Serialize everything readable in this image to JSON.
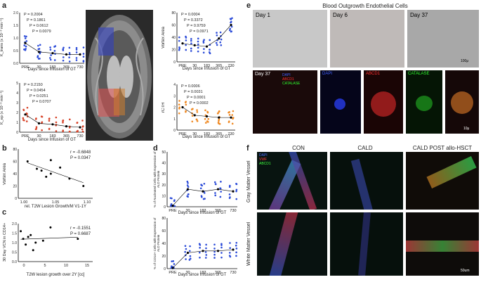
{
  "panels": {
    "a": "a",
    "b": "b",
    "c": "c",
    "d": "d",
    "e": "e",
    "f": "f"
  },
  "colors": {
    "blue": "#2b4bd8",
    "red": "#d8452b",
    "orange": "#f08a24",
    "green": "#20c020",
    "darkred": "#c81e1e"
  },
  "a": {
    "xticks": [
      "PRE",
      "30",
      "183",
      "365",
      "730"
    ],
    "xlabel": "Days since Infusion of GT",
    "top_left": {
      "ylabel": "K",
      "ylabel_full": "K_trans (x 10⁻³ min⁻¹)",
      "yticks": [
        "0.0",
        "0.5",
        "1.0",
        "1.5",
        "2.0"
      ],
      "p": [
        "P = 0.2004",
        "P = 0.1861",
        "P = 0.0612",
        "P = 0.0079"
      ]
    },
    "bottom_left": {
      "ylabel_full": "K_ep (x 10⁻³ min⁻¹)",
      "yticks": [
        "0",
        "1",
        "2",
        "3",
        "4",
        "5"
      ],
      "p": [
        "P = 0.2150",
        "P = 0.0454",
        "P = 0.0251",
        "P = 0.0707"
      ]
    },
    "top_right": {
      "ylabel": "Vortex Area",
      "yticks": [
        "0",
        "20",
        "40",
        "60",
        "80"
      ],
      "p": [
        "P = 0.0004",
        "P = 0.3372",
        "P = 0.9759",
        "P = 0.0971"
      ]
    },
    "bottom_right": {
      "ylabel": "rCTH",
      "yticks": [
        "0",
        "1",
        "2",
        "3",
        "4"
      ],
      "p": [
        "P = 0.0006",
        "P = 0.0031",
        "P = 0.0001",
        "P = 0.0002"
      ]
    }
  },
  "b": {
    "ylabel": "Vortex Area",
    "xlabel": "rel. T2W Lesion Growth/M V1-1Y",
    "stats": [
      "r = -0.6848",
      "P = 0.0347"
    ],
    "xticks": [
      "1.00",
      "1.05",
      "1.10"
    ],
    "yticks": [
      "0",
      "20",
      "40",
      "60",
      "80"
    ]
  },
  "c": {
    "ylabel": "30 Day VCN in CD14+",
    "xlabel": "T2W lesion growth over 2Y [cc]",
    "stats": [
      "r = -0.1551",
      "P = 0.6687"
    ],
    "xticks": [
      "0",
      "5",
      "10",
      "15"
    ],
    "yticks": [
      "0.0",
      "0.5",
      "1.0",
      "1.5",
      "2.0"
    ]
  },
  "d": {
    "xticks": [
      "PRE",
      "30",
      "183",
      "365",
      "730"
    ],
    "xlabel": "Days since Infusion of GT",
    "top": {
      "ylabel": "% of Nucleated Cells with Expression of ALD Protein",
      "yticks": [
        "0",
        "10",
        "20",
        "30",
        "40",
        "50"
      ]
    },
    "bottom": {
      "ylabel": "% of CD14+ Cells with Expression of ALD Protein",
      "yticks": [
        "0",
        "20",
        "40",
        "60",
        "80"
      ]
    }
  },
  "e": {
    "title": "Blood Outgrowth Endothelial Cells",
    "days": [
      "Day 1",
      "Day 6",
      "Day 37"
    ],
    "day37": "Day 37",
    "stain_labels": {
      "dapi": "DAPI",
      "abcd1": "ABCD1",
      "catalase": "CATALASE"
    },
    "scale_top": "100μ",
    "scale_bottom": "10μ"
  },
  "f": {
    "cols": [
      "CON",
      "CALD",
      "CALD POST allo-HSCT"
    ],
    "rows": [
      "Gray Matter Vessel",
      "White Matter Vessel"
    ],
    "legend": {
      "dapi": "DAPI",
      "vwf": "VWF",
      "abcd1": "ABCD1"
    },
    "scale": "50um"
  },
  "chart_data": [
    {
      "type": "scatter",
      "title": "",
      "ylabel": "K_trans (x 10⁻³ min⁻¹)",
      "xlabel": "Days since Infusion of GT",
      "categories": [
        "PRE",
        "30",
        "183",
        "365",
        "730"
      ],
      "series": [
        {
          "values": [
            0.8,
            0.45,
            0.4,
            0.35,
            0.35
          ]
        }
      ],
      "ylim": [
        0,
        2
      ]
    },
    {
      "type": "scatter",
      "title": "",
      "ylabel": "K_ep (x 10⁻³ min⁻¹)",
      "xlabel": "Days since Infusion of GT",
      "categories": [
        "PRE",
        "30",
        "183",
        "365",
        "730"
      ],
      "series": [
        {
          "values": [
            1.8,
            0.9,
            0.8,
            0.6,
            0.5
          ]
        }
      ],
      "ylim": [
        0,
        5
      ]
    },
    {
      "type": "scatter",
      "title": "",
      "ylabel": "Vortex Area",
      "xlabel": "Days since Infusion of GT",
      "categories": [
        "PRE",
        "30",
        "183",
        "365",
        "730"
      ],
      "series": [
        {
          "values": [
            30,
            27,
            25,
            38,
            60
          ]
        }
      ],
      "ylim": [
        0,
        80
      ]
    },
    {
      "type": "scatter",
      "title": "",
      "ylabel": "rCTH",
      "xlabel": "Days since Infusion of GT",
      "categories": [
        "PRE",
        "30",
        "183",
        "365",
        "730"
      ],
      "series": [
        {
          "values": [
            2.0,
            1.3,
            1.2,
            1.1,
            1.1
          ]
        }
      ],
      "ylim": [
        0,
        4
      ]
    },
    {
      "type": "scatter",
      "title": "",
      "ylabel": "Vortex Area",
      "xlabel": "rel. T2W Lesion Growth/M V1-1Y",
      "x": [
        0.96,
        0.98,
        0.99,
        1.0,
        1.01,
        1.01,
        1.03,
        1.05,
        1.08
      ],
      "y": [
        60,
        48,
        45,
        35,
        62,
        40,
        50,
        32,
        20
      ],
      "xlim": [
        0.94,
        1.1
      ],
      "ylim": [
        0,
        80
      ]
    },
    {
      "type": "scatter",
      "title": "",
      "ylabel": "30 Day VCN in CD14+",
      "xlabel": "T2W lesion growth over 2Y [cc]",
      "x": [
        0.5,
        1,
        1.5,
        2,
        2.5,
        3,
        3.5,
        5,
        6.5,
        12
      ],
      "y": [
        1.6,
        1.2,
        0.9,
        1.3,
        1.4,
        0.6,
        1.0,
        1.1,
        1.8,
        1.2
      ],
      "xlim": [
        0,
        15
      ],
      "ylim": [
        0,
        2
      ]
    },
    {
      "type": "scatter",
      "title": "",
      "ylabel": "% of Nucleated Cells with Expression of ALD Protein",
      "xlabel": "Days since Infusion of GT",
      "categories": [
        "PRE",
        "30",
        "183",
        "365",
        "730"
      ],
      "series": [
        {
          "values": [
            1,
            16,
            14,
            16,
            14
          ]
        }
      ],
      "ylim": [
        0,
        50
      ]
    },
    {
      "type": "scatter",
      "title": "",
      "ylabel": "% of CD14+ Cells with Expression of ALD Protein",
      "xlabel": "Days since Infusion of GT",
      "categories": [
        "PRE",
        "30",
        "183",
        "365",
        "730"
      ],
      "series": [
        {
          "values": [
            1,
            25,
            28,
            28,
            30
          ]
        }
      ],
      "ylim": [
        0,
        80
      ]
    }
  ]
}
